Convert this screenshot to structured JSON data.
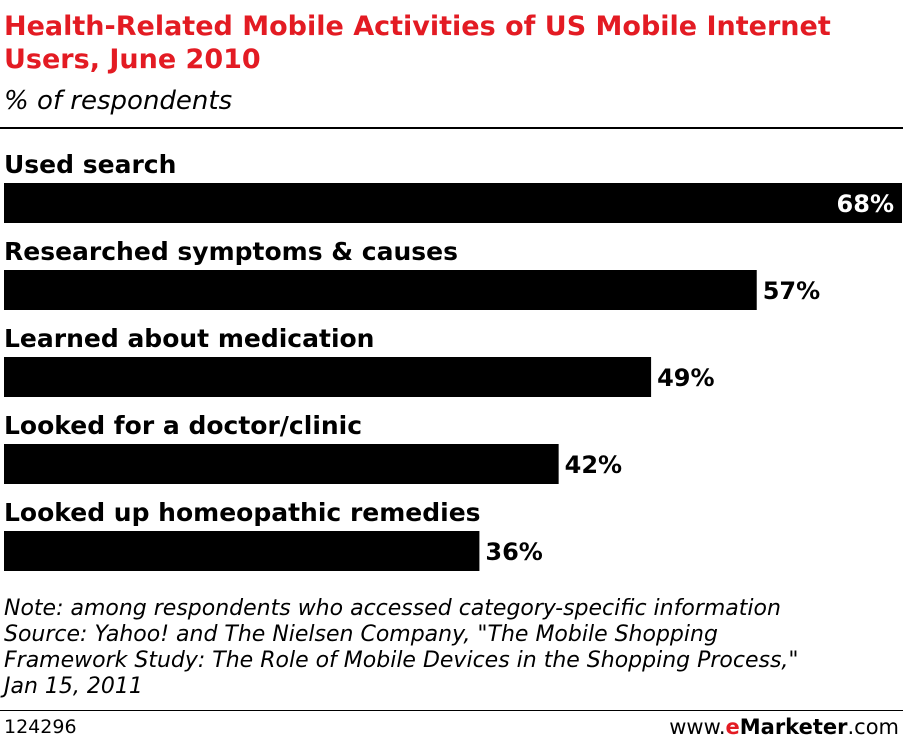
{
  "chart_data": {
    "type": "bar",
    "orientation": "horizontal",
    "title": "Health-Related Mobile Activities of US Mobile Internet Users, June 2010",
    "subtitle": "% of respondents",
    "categories": [
      "Used search",
      "Researched symptoms & causes",
      "Learned about medication",
      "Looked for a doctor/clinic",
      "Looked up homeopathic remedies"
    ],
    "values": [
      68,
      57,
      49,
      42,
      36
    ],
    "value_labels": [
      "68%",
      "57%",
      "49%",
      "42%",
      "36%"
    ],
    "value_unit": "%",
    "xlim": [
      0,
      68
    ],
    "grid": false,
    "legend": "none",
    "bar_color": "#000000"
  },
  "note": [
    "Note: among respondents who accessed category-specific information",
    "Source: Yahoo! and The Nielsen Company, \"The Mobile Shopping",
    "Framework Study: The Role of Mobile Devices in the Shopping Process,\"",
    "Jan 15, 2011"
  ],
  "footer": {
    "chart_id": "124296",
    "brand_prefix": "www.",
    "brand_accent": "e",
    "brand_name": "Marketer",
    "brand_suffix": ".com"
  },
  "colors": {
    "title": "#e31b23",
    "brand_accent": "#e31b23"
  }
}
